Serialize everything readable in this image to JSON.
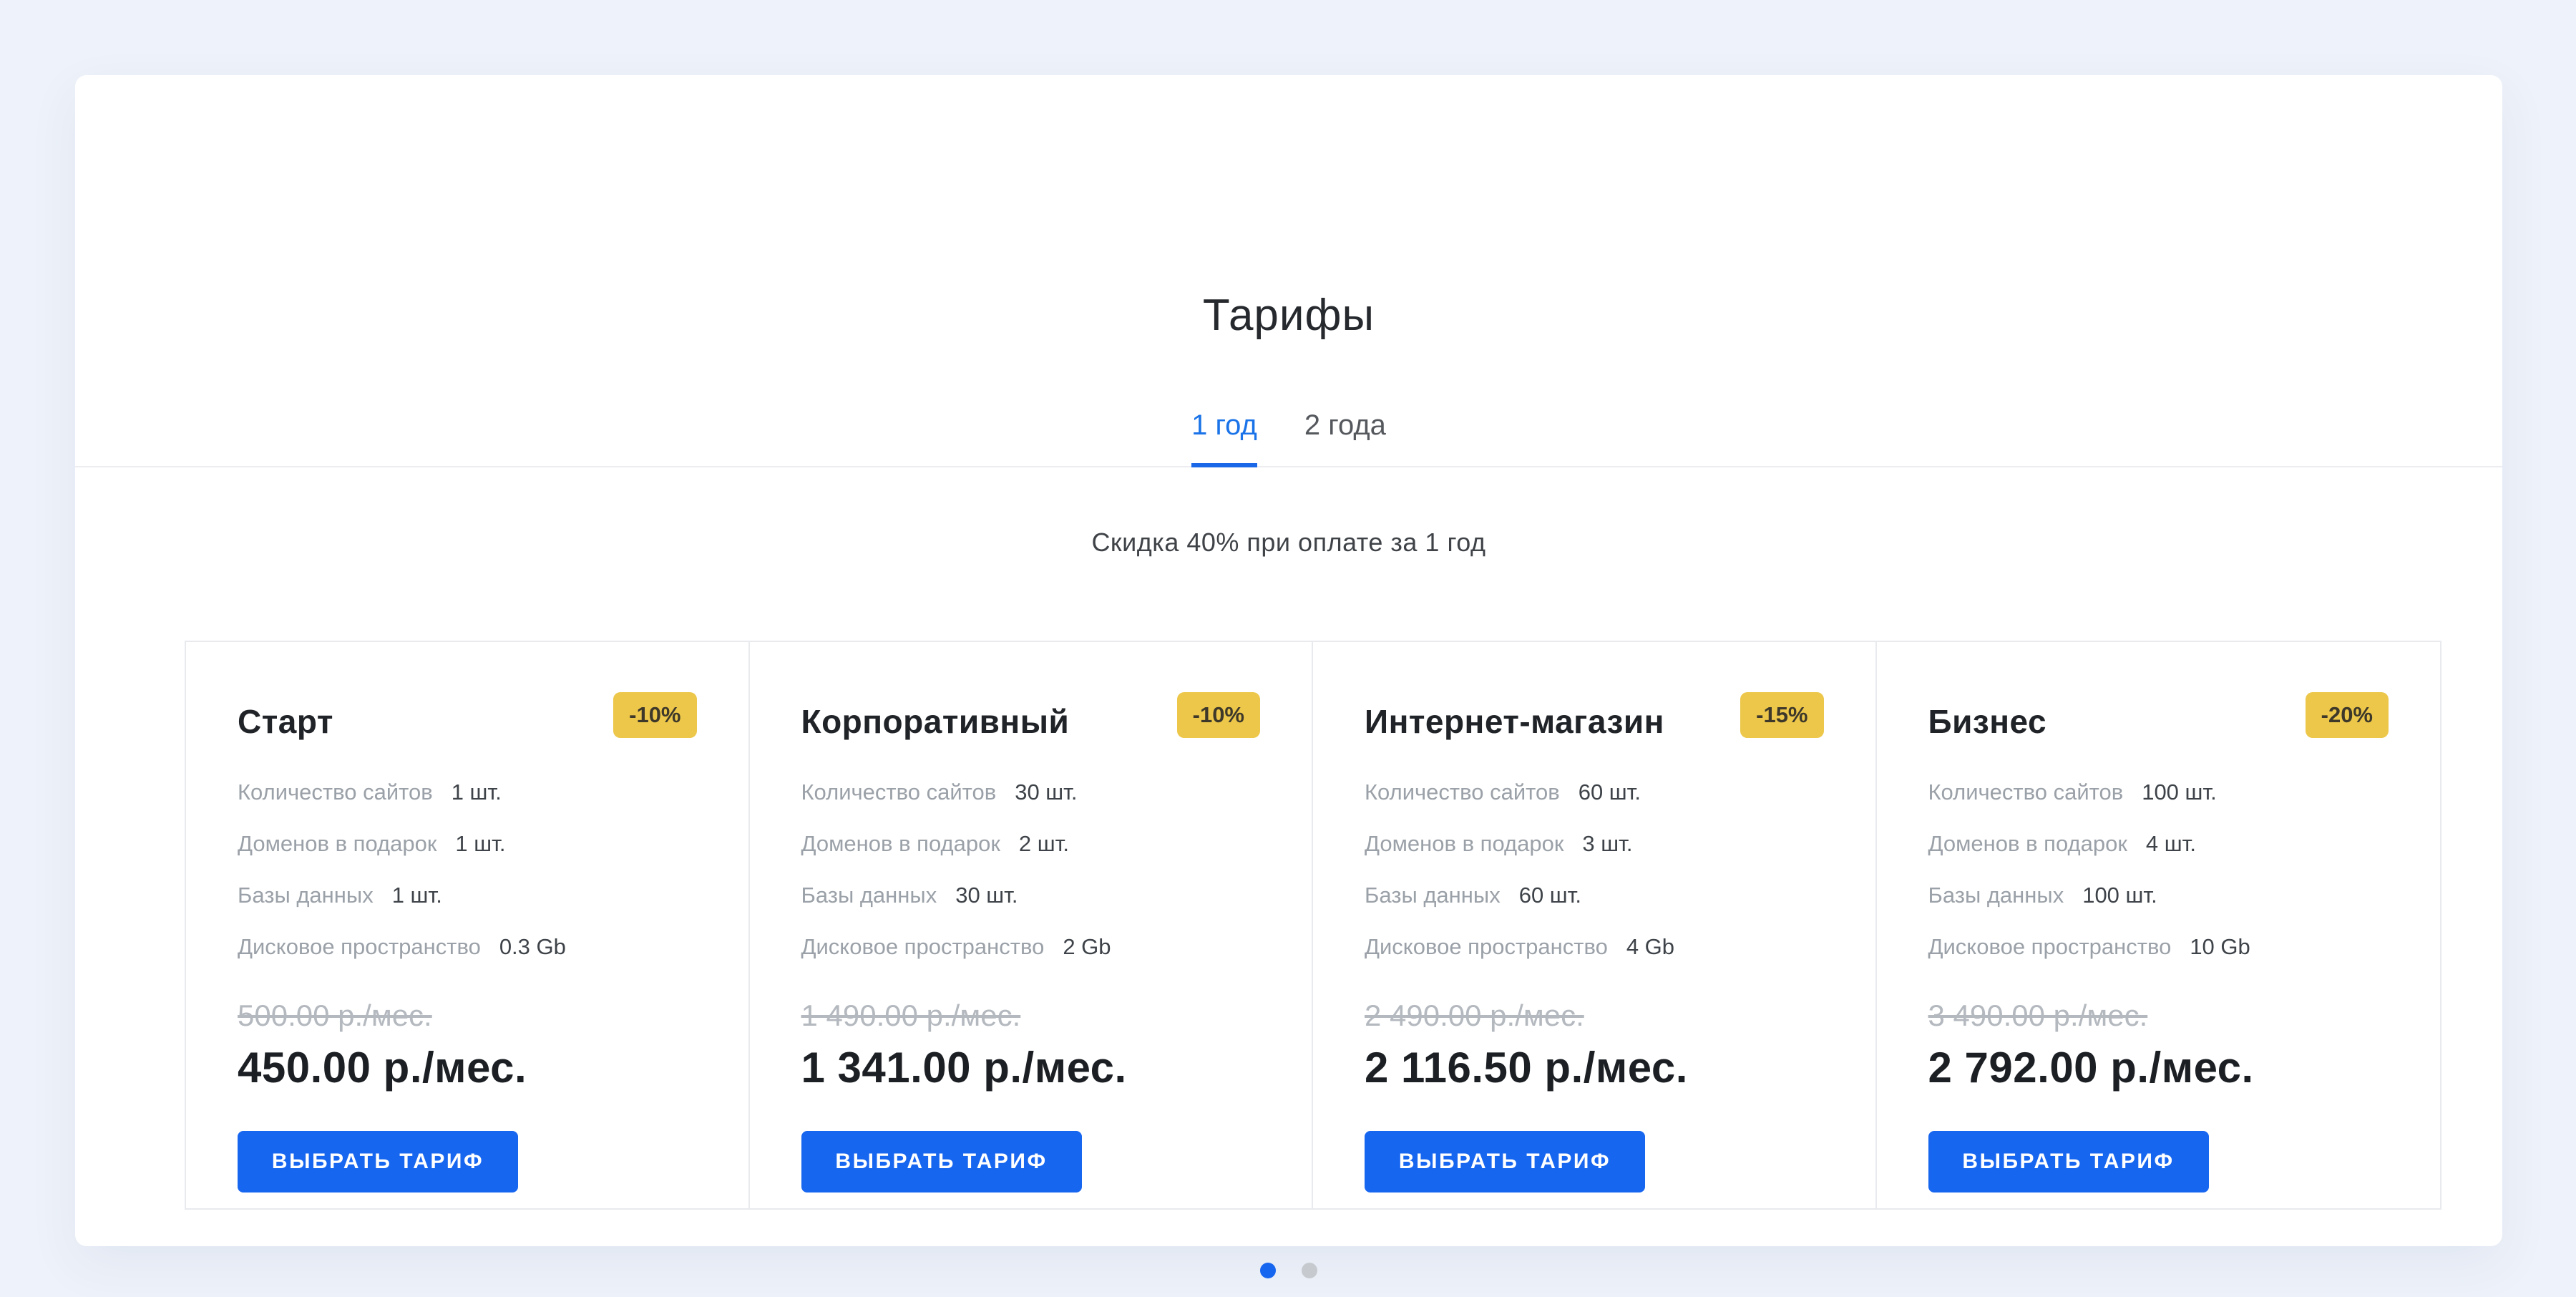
{
  "page": {
    "background_color": "#eef2fa",
    "accent_color": "#1766f0",
    "badge_color": "#edc74a",
    "active_tab_color": "#1a73e8"
  },
  "panel": {
    "title": "Тарифы",
    "tabs": [
      {
        "label": "1 год",
        "active": true
      },
      {
        "label": "2 года",
        "active": false
      }
    ],
    "note": "Скидка 40% при оплате за 1 год"
  },
  "pricing": {
    "feature_labels": [
      "Количество сайтов",
      "Доменов в подарок",
      "Базы данных",
      "Дисковое пространство"
    ],
    "cards": [
      {
        "title": "Старт",
        "badge": "-10%",
        "values": [
          "1 шт.",
          "1 шт.",
          "1 шт.",
          "0.3 Gb"
        ],
        "old_price": "500.00 р./мес.",
        "price": "450.00 р./мес.",
        "button": "ВЫБРАТЬ ТАРИФ"
      },
      {
        "title": "Корпоративный",
        "badge": "-10%",
        "values": [
          "30 шт.",
          "2 шт.",
          "30 шт.",
          "2 Gb"
        ],
        "old_price": "1 490.00 р./мес.",
        "price": "1 341.00 р./мес.",
        "button": "ВЫБРАТЬ ТАРИФ"
      },
      {
        "title": "Интернет-магазин",
        "badge": "-15%",
        "values": [
          "60 шт.",
          "3 шт.",
          "60 шт.",
          "4 Gb"
        ],
        "old_price": "2 490.00 р./мес.",
        "price": "2 116.50 р./мес.",
        "button": "ВЫБРАТЬ ТАРИФ"
      },
      {
        "title": "Бизнес",
        "badge": "-20%",
        "values": [
          "100 шт.",
          "4 шт.",
          "100 шт.",
          "10 Gb"
        ],
        "old_price": "3 490.00 р./мес.",
        "price": "2 792.00 р./мес.",
        "button": "ВЫБРАТЬ ТАРИФ"
      }
    ]
  },
  "carousel": {
    "dots": [
      {
        "active": true
      },
      {
        "active": false
      }
    ]
  }
}
